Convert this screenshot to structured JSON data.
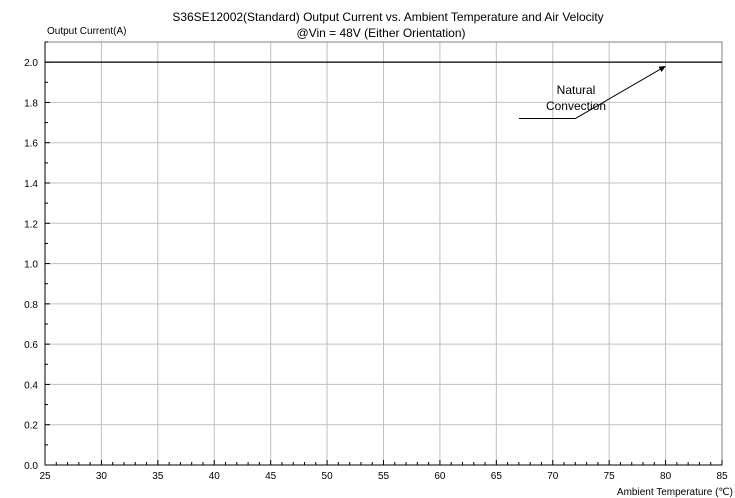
{
  "chart_data": {
    "type": "line",
    "title_line1": "S36SE12002(Standard)  Output Current vs. Ambient Temperature and Air Velocity",
    "title_line2": "@Vin = 48V (Either Orientation)",
    "ylabel": "Output Current(A)",
    "xlabel": "Ambient Temperature (℃)",
    "xlim": [
      25,
      85
    ],
    "ylim": [
      0.0,
      2.1
    ],
    "x_ticks": [
      25,
      30,
      35,
      40,
      45,
      50,
      55,
      60,
      65,
      70,
      75,
      80,
      85
    ],
    "x_tick_labels": [
      "25",
      "30",
      "35",
      "40",
      "45",
      "50",
      "55",
      "60",
      "65",
      "70",
      "75",
      "80",
      "85"
    ],
    "y_ticks": [
      0.0,
      0.2,
      0.4,
      0.6,
      0.8,
      1.0,
      1.2,
      1.4,
      1.6,
      1.8,
      2.0
    ],
    "y_tick_labels": [
      "0.0",
      "0.2",
      "0.4",
      "0.6",
      "0.8",
      "1.0",
      "1.2",
      "1.4",
      "1.6",
      "1.8",
      "2.0"
    ],
    "grid": true,
    "series": [
      {
        "name": "Natural Convection",
        "x": [
          25,
          85
        ],
        "y": [
          2.0,
          2.0
        ],
        "color": "#000000"
      }
    ],
    "annotations": [
      {
        "lines": [
          "Natural",
          "Convection"
        ],
        "points_to": [
          80,
          2.0
        ],
        "arrow_start": [
          72,
          1.72
        ],
        "leader_end": [
          67,
          1.72
        ]
      }
    ]
  }
}
